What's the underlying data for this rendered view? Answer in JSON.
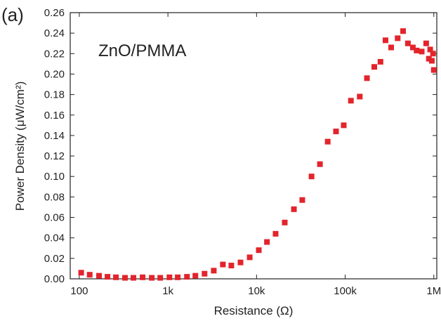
{
  "chart_data": {
    "type": "scatter",
    "panel_label": "(a)",
    "annotation": "ZnO/PMMA",
    "x_label": "Resistance (Ω)",
    "y_label": "Power Density (μW/cm²)",
    "x_scale": "log",
    "color": "#e3242b",
    "xlim": [
      79,
      1080000
    ],
    "ylim": [
      0,
      0.26
    ],
    "xticks": [
      100,
      {
        "value": 1000,
        "label": "1k"
      },
      {
        "value": 10000,
        "label": "10k"
      },
      {
        "value": 100000,
        "label": "100k"
      },
      {
        "value": 1000000,
        "label": "1M"
      }
    ],
    "yticks": [
      {
        "value": 0,
        "label": "0.00"
      },
      {
        "value": 0.02,
        "label": "0.02"
      },
      {
        "value": 0.04,
        "label": "0.04"
      },
      {
        "value": 0.06,
        "label": "0.06"
      },
      {
        "value": 0.08,
        "label": "0.08"
      },
      {
        "value": 0.1,
        "label": "0.10"
      },
      {
        "value": 0.12,
        "label": "0.12"
      },
      {
        "value": 0.14,
        "label": "0.14"
      },
      {
        "value": 0.16,
        "label": "0.16"
      },
      {
        "value": 0.18,
        "label": "0.18"
      },
      {
        "value": 0.2,
        "label": "0.20"
      },
      {
        "value": 0.22,
        "label": "0.22"
      },
      {
        "value": 0.24,
        "label": "0.24"
      },
      {
        "value": 0.26,
        "label": "0.26"
      }
    ],
    "x": [
      105,
      131,
      167,
      208,
      259,
      328,
      408,
      518,
      657,
      819,
      1040,
      1290,
      1640,
      2040,
      2590,
      3290,
      4170,
      5190,
      6590,
      8370,
      10600,
      13100,
      16400,
      20800,
      26400,
      32800,
      41700,
      51900,
      63500,
      78800,
      96300,
      116000,
      146000,
      176000,
      213000,
      250000,
      285000,
      330000,
      391000,
      450000,
      510000,
      580000,
      640000,
      730000,
      820000,
      880000,
      910000,
      950000,
      980000,
      1000000
    ],
    "values": [
      0.006,
      0.004,
      0.003,
      0.002,
      0.0015,
      0.001,
      0.001,
      0.0015,
      0.001,
      0.001,
      0.0015,
      0.0015,
      0.002,
      0.003,
      0.005,
      0.008,
      0.014,
      0.013,
      0.016,
      0.021,
      0.028,
      0.036,
      0.044,
      0.055,
      0.068,
      0.077,
      0.1,
      0.112,
      0.134,
      0.144,
      0.15,
      0.174,
      0.178,
      0.196,
      0.207,
      0.212,
      0.233,
      0.226,
      0.235,
      0.242,
      0.23,
      0.226,
      0.223,
      0.222,
      0.23,
      0.215,
      0.224,
      0.213,
      0.22,
      0.204
    ]
  }
}
